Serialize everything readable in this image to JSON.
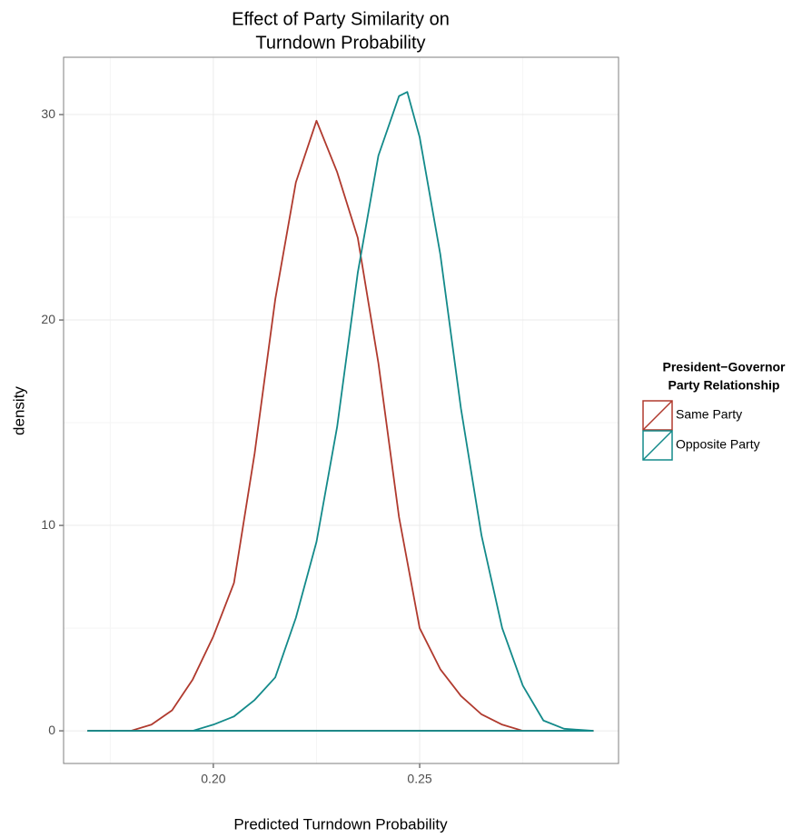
{
  "chart_data": {
    "type": "line",
    "title": [
      "Effect of Party Similarity on",
      "Turndown Probability"
    ],
    "xlabel": "Predicted Turndown Probability",
    "ylabel": "density",
    "legend_title": [
      "President−Governor",
      "Party Relationship"
    ],
    "legend_position": "right",
    "grid": true,
    "xlim": [
      0.1637,
      0.2982
    ],
    "ylim": [
      -1.59,
      32.79
    ],
    "xticks": [
      {
        "value": 0.2,
        "label": "0.20"
      },
      {
        "value": 0.25,
        "label": "0.25"
      }
    ],
    "yticks": [
      0,
      10,
      20,
      30
    ],
    "xminor": [
      0.175,
      0.225,
      0.275
    ],
    "yminor": [
      5,
      15,
      25
    ],
    "series": [
      {
        "name": "Same Party",
        "color": "#b03a2e",
        "x": [
          0.1696,
          0.18,
          0.185,
          0.19,
          0.195,
          0.2,
          0.205,
          0.21,
          0.215,
          0.22,
          0.225,
          0.23,
          0.235,
          0.24,
          0.245,
          0.25,
          0.255,
          0.26,
          0.265,
          0.27,
          0.275,
          0.292
        ],
        "values": [
          0,
          0,
          0.3,
          1.0,
          2.5,
          4.6,
          7.2,
          13.5,
          21,
          26.7,
          29.7,
          27.2,
          24,
          17.9,
          10.4,
          5,
          3,
          1.7,
          0.8,
          0.3,
          0,
          0
        ]
      },
      {
        "name": "Opposite Party",
        "color": "#138a8a",
        "x": [
          0.1696,
          0.195,
          0.2,
          0.205,
          0.21,
          0.215,
          0.22,
          0.225,
          0.23,
          0.235,
          0.24,
          0.245,
          0.247,
          0.25,
          0.255,
          0.26,
          0.265,
          0.27,
          0.275,
          0.28,
          0.285,
          0.292
        ],
        "values": [
          0,
          0,
          0.3,
          0.7,
          1.5,
          2.6,
          5.5,
          9.2,
          14.8,
          22.3,
          28,
          30.9,
          31.1,
          28.9,
          23.2,
          15.7,
          9.5,
          5,
          2.2,
          0.5,
          0.1,
          0
        ]
      }
    ]
  }
}
